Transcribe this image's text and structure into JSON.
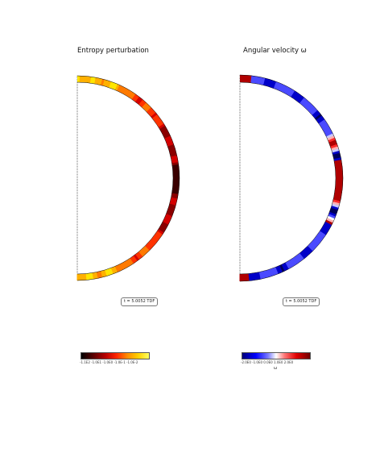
{
  "panels": [
    {
      "title": "Entropy perturbation",
      "time_label": "t = 5.0052 TDF",
      "colorbar": {
        "colormap": "hot",
        "tick_labels": "-1.1E2  -1.0E1  -1.0E0  -1.0E-1  -1.0E-2",
        "label": ""
      }
    },
    {
      "title": "Angular velocity ω",
      "time_label": "t = 5.0052 TDF",
      "colorbar": {
        "colormap": "blue-white-red",
        "tick_labels": "-2.0E0   -1.0E0   0.0E0   1.0E0   2.0E0",
        "label": "ω"
      }
    }
  ],
  "colors": {
    "entropy_palette": [
      "#ffe600",
      "#ffb000",
      "#ff7a00",
      "#ff3300",
      "#d40000",
      "#8a0000",
      "#3a0000"
    ],
    "omega_palette": [
      "#00005a",
      "#0000c8",
      "#4a4aff",
      "#c8c8ff",
      "#ffffff",
      "#ffb0b0",
      "#ff2a2a",
      "#b00000",
      "#600000"
    ]
  }
}
